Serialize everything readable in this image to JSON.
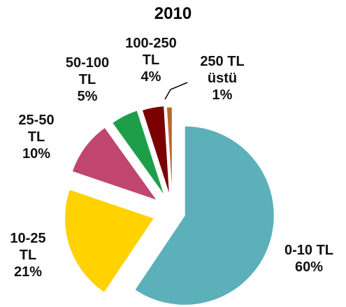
{
  "chart_data": {
    "type": "pie",
    "title": "2010",
    "categories": [
      "0-10 TL",
      "10-25 TL",
      "25-50 TL",
      "50-100 TL",
      "100-250 TL",
      "250 TL üstü"
    ],
    "values": [
      60,
      21,
      10,
      5,
      4,
      1
    ],
    "value_labels": [
      "60%",
      "21%",
      "10%",
      "5%",
      "4%",
      "1%"
    ],
    "colors": [
      "#5bb0ba",
      "#ffd200",
      "#c0466f",
      "#1f9e4a",
      "#7b0000",
      "#c0652a"
    ]
  }
}
